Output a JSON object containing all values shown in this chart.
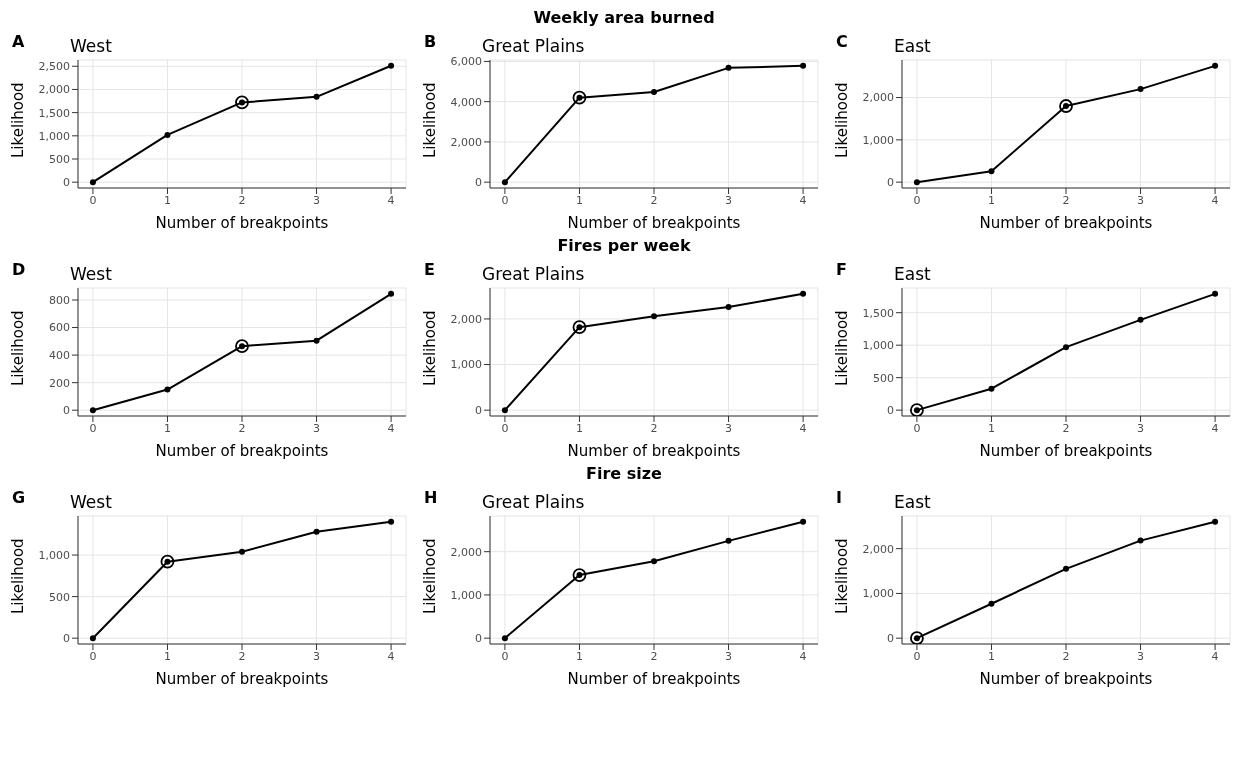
{
  "chart_data": [
    {
      "type": "line",
      "title": "West",
      "annotations": [
        "A",
        "Weekly area burned"
      ],
      "xlabel": "Number of breakpoints",
      "ylabel": "Likelihood",
      "x": [
        0,
        1,
        2,
        3,
        4
      ],
      "series": [
        {
          "color": "#000000",
          "values": [
            0,
            1020,
            1720,
            1840,
            2510
          ]
        },
        {
          "type": "scatter",
          "color": "#000000",
          "x": [
            2
          ],
          "values": [
            1720
          ]
        }
      ],
      "xlim": [
        -0.2,
        4.2
      ],
      "xticks": [
        0,
        1,
        2,
        3,
        4
      ],
      "ylim": [
        -125,
        2635
      ],
      "yticks": [
        0,
        500,
        {
          "value": 1000,
          "label": "1,000"
        },
        {
          "value": 1500,
          "label": "1,500"
        },
        {
          "value": 2000,
          "label": "2,000"
        },
        {
          "value": 2500,
          "label": "2,500"
        }
      ],
      "grid": true,
      "marker": "circle"
    },
    {
      "type": "line",
      "title": "Great Plains",
      "annotations": [
        "B"
      ],
      "xlabel": "Number of breakpoints",
      "ylabel": "Likelihood",
      "x": [
        0,
        1,
        2,
        3,
        4
      ],
      "series": [
        {
          "color": "#000000",
          "values": [
            0,
            4200,
            4480,
            5680,
            5780
          ]
        },
        {
          "type": "scatter",
          "color": "#000000",
          "x": [
            1
          ],
          "values": [
            4200
          ]
        }
      ],
      "xlim": [
        -0.2,
        4.2
      ],
      "xticks": [
        0,
        1,
        2,
        3,
        4
      ],
      "ylim": [
        -290,
        6070
      ],
      "yticks": [
        0,
        {
          "value": 2000,
          "label": "2,000"
        },
        {
          "value": 4000,
          "label": "4,000"
        },
        {
          "value": 6000,
          "label": "6,000"
        }
      ],
      "grid": true,
      "marker": "circle"
    },
    {
      "type": "line",
      "title": "East",
      "annotations": [
        "C"
      ],
      "xlabel": "Number of breakpoints",
      "ylabel": "Likelihood",
      "x": [
        0,
        1,
        2,
        3,
        4
      ],
      "series": [
        {
          "color": "#000000",
          "values": [
            0,
            260,
            1800,
            2200,
            2750
          ]
        },
        {
          "type": "scatter",
          "color": "#000000",
          "x": [
            2
          ],
          "values": [
            1800
          ]
        }
      ],
      "xlim": [
        -0.2,
        4.2
      ],
      "xticks": [
        0,
        1,
        2,
        3,
        4
      ],
      "ylim": [
        -138,
        2888
      ],
      "yticks": [
        0,
        {
          "value": 1000,
          "label": "1,000"
        },
        {
          "value": 2000,
          "label": "2,000"
        }
      ],
      "grid": true,
      "marker": "circle"
    },
    {
      "type": "line",
      "title": "West",
      "annotations": [
        "D",
        "Fires per week"
      ],
      "xlabel": "Number of breakpoints",
      "ylabel": "Likelihood",
      "x": [
        0,
        1,
        2,
        3,
        4
      ],
      "series": [
        {
          "color": "#000000",
          "values": [
            0,
            150,
            465,
            505,
            845
          ]
        },
        {
          "type": "scatter",
          "color": "#000000",
          "x": [
            2
          ],
          "values": [
            465
          ]
        }
      ],
      "xlim": [
        -0.2,
        4.2
      ],
      "xticks": [
        0,
        1,
        2,
        3,
        4
      ],
      "ylim": [
        -42,
        887
      ],
      "yticks": [
        0,
        200,
        400,
        600,
        800
      ],
      "grid": true,
      "marker": "circle"
    },
    {
      "type": "line",
      "title": "Great Plains",
      "annotations": [
        "E"
      ],
      "xlabel": "Number of breakpoints",
      "ylabel": "Likelihood",
      "x": [
        0,
        1,
        2,
        3,
        4
      ],
      "series": [
        {
          "color": "#000000",
          "values": [
            0,
            1820,
            2060,
            2260,
            2550
          ]
        },
        {
          "type": "scatter",
          "color": "#000000",
          "x": [
            1
          ],
          "values": [
            1820
          ]
        }
      ],
      "xlim": [
        -0.2,
        4.2
      ],
      "xticks": [
        0,
        1,
        2,
        3,
        4
      ],
      "ylim": [
        -128,
        2678
      ],
      "yticks": [
        0,
        {
          "value": 1000,
          "label": "1,000"
        },
        {
          "value": 2000,
          "label": "2,000"
        }
      ],
      "grid": true,
      "marker": "circle"
    },
    {
      "type": "line",
      "title": "East",
      "annotations": [
        "F"
      ],
      "xlabel": "Number of breakpoints",
      "ylabel": "Likelihood",
      "x": [
        0,
        1,
        2,
        3,
        4
      ],
      "series": [
        {
          "color": "#000000",
          "values": [
            0,
            330,
            970,
            1390,
            1790
          ]
        },
        {
          "type": "scatter",
          "color": "#000000",
          "x": [
            0
          ],
          "values": [
            0
          ]
        }
      ],
      "xlim": [
        -0.2,
        4.2
      ],
      "xticks": [
        0,
        1,
        2,
        3,
        4
      ],
      "ylim": [
        -90,
        1880
      ],
      "yticks": [
        0,
        500,
        {
          "value": 1000,
          "label": "1,000"
        },
        {
          "value": 1500,
          "label": "1,500"
        }
      ],
      "grid": true,
      "marker": "circle"
    },
    {
      "type": "line",
      "title": "West",
      "annotations": [
        "G",
        "Fire size"
      ],
      "xlabel": "Number of breakpoints",
      "ylabel": "Likelihood",
      "x": [
        0,
        1,
        2,
        3,
        4
      ],
      "series": [
        {
          "color": "#000000",
          "values": [
            0,
            920,
            1040,
            1280,
            1400
          ]
        },
        {
          "type": "scatter",
          "color": "#000000",
          "x": [
            1
          ],
          "values": [
            920
          ]
        }
      ],
      "xlim": [
        -0.2,
        4.2
      ],
      "xticks": [
        0,
        1,
        2,
        3,
        4
      ],
      "ylim": [
        -70,
        1470
      ],
      "yticks": [
        0,
        500,
        {
          "value": 1000,
          "label": "1,000"
        }
      ],
      "grid": true,
      "marker": "circle"
    },
    {
      "type": "line",
      "title": "Great Plains",
      "annotations": [
        "H"
      ],
      "xlabel": "Number of breakpoints",
      "ylabel": "Likelihood",
      "x": [
        0,
        1,
        2,
        3,
        4
      ],
      "series": [
        {
          "color": "#000000",
          "values": [
            0,
            1460,
            1780,
            2250,
            2690
          ]
        },
        {
          "type": "scatter",
          "color": "#000000",
          "x": [
            1
          ],
          "values": [
            1460
          ]
        }
      ],
      "xlim": [
        -0.2,
        4.2
      ],
      "xticks": [
        0,
        1,
        2,
        3,
        4
      ],
      "ylim": [
        -135,
        2825
      ],
      "yticks": [
        0,
        {
          "value": 1000,
          "label": "1,000"
        },
        {
          "value": 2000,
          "label": "2,000"
        }
      ],
      "grid": true,
      "marker": "circle"
    },
    {
      "type": "line",
      "title": "East",
      "annotations": [
        "I"
      ],
      "xlabel": "Number of breakpoints",
      "ylabel": "Likelihood",
      "x": [
        0,
        1,
        2,
        3,
        4
      ],
      "series": [
        {
          "color": "#000000",
          "values": [
            0,
            770,
            1550,
            2180,
            2600
          ]
        },
        {
          "type": "scatter",
          "color": "#000000",
          "x": [
            0
          ],
          "values": [
            0
          ]
        }
      ],
      "xlim": [
        -0.2,
        4.2
      ],
      "xticks": [
        0,
        1,
        2,
        3,
        4
      ],
      "ylim": [
        -130,
        2730
      ],
      "yticks": [
        0,
        {
          "value": 1000,
          "label": "1,000"
        },
        {
          "value": 2000,
          "label": "2,000"
        }
      ],
      "grid": true,
      "marker": "circle"
    }
  ]
}
